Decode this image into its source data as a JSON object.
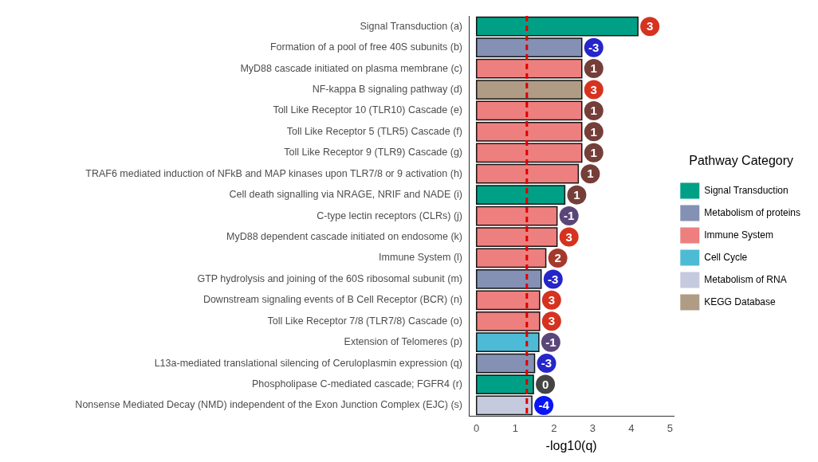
{
  "chart_data": {
    "type": "bar",
    "orientation": "horizontal",
    "stacked": true,
    "xlabel": "-log10(q)",
    "legend_title": "Pathway Category",
    "legend": "right",
    "grid": false,
    "categories": [
      "Signal Transduction (a)",
      "Formation of a pool of free 40S subunits (b)",
      "MyD88 cascade initiated on plasma membrane (c)",
      "NF-kappa B signaling pathway (d)",
      "Toll Like Receptor 10 (TLR10) Cascade (e)",
      "Toll Like Receptor 5 (TLR5) Cascade (f)",
      "Toll Like Receptor 9 (TLR9) Cascade (g)",
      "TRAF6 mediated induction of NFkB and MAP kinases upon TLR7/8 or 9 activation (h)",
      "Cell death signalling via NRAGE, NRIF and NADE (i)",
      "C-type lectin receptors (CLRs) (j)",
      "MyD88 dependent cascade initiated on endosome (k)",
      "Immune System (l)",
      "GTP hydrolysis and joining of the 60S ribosomal subunit (m)",
      "Downstream signaling events of B Cell Receptor (BCR) (n)",
      "Toll Like Receptor 7/8 (TLR7/8) Cascade (o)",
      "Extension of Telomeres (p)",
      "L13a-mediated translational silencing of Ceruloplasmin expression (q)",
      "Phospholipase C-mediated cascade; FGFR4 (r)",
      "Nonsense Mediated Decay (NMD) independent of the Exon Junction Complex (EJC) (s)"
    ],
    "series": [
      {
        "name": "Signal Transduction",
        "color": "#00a087",
        "values": [
          4.17,
          null,
          null,
          null,
          null,
          null,
          null,
          null,
          2.28,
          null,
          null,
          null,
          null,
          null,
          null,
          null,
          null,
          1.47,
          null
        ]
      },
      {
        "name": "Metabolism of proteins",
        "color": "#8491b4",
        "values": [
          null,
          2.72,
          null,
          null,
          null,
          null,
          null,
          null,
          null,
          null,
          null,
          null,
          1.67,
          null,
          null,
          null,
          1.5,
          null,
          null
        ]
      },
      {
        "name": "Immune System",
        "color": "#ee7f7f",
        "values": [
          null,
          null,
          2.72,
          null,
          2.72,
          2.72,
          2.72,
          2.63,
          null,
          2.08,
          2.08,
          1.79,
          null,
          1.63,
          1.63,
          null,
          null,
          null,
          null
        ]
      },
      {
        "name": "Cell Cycle",
        "color": "#4dbbd5",
        "values": [
          null,
          null,
          null,
          null,
          null,
          null,
          null,
          null,
          null,
          null,
          null,
          null,
          null,
          null,
          null,
          1.61,
          null,
          null,
          null
        ]
      },
      {
        "name": "Metabolism of RNA",
        "color": "#c5cade",
        "values": [
          null,
          null,
          null,
          null,
          null,
          null,
          null,
          null,
          null,
          null,
          null,
          null,
          null,
          null,
          null,
          null,
          null,
          null,
          1.43
        ]
      },
      {
        "name": "KEGG Database",
        "color": "#b09c85",
        "values": [
          null,
          null,
          null,
          2.72,
          null,
          null,
          null,
          null,
          null,
          null,
          null,
          null,
          null,
          null,
          null,
          null,
          null,
          null,
          null
        ]
      }
    ],
    "xlim": [
      -0.2,
      5.1
    ],
    "xticks": [
      0,
      1,
      2,
      3,
      4,
      5
    ],
    "ref_lines": [
      {
        "axis": "x",
        "value": 1.3,
        "color": "#e00000",
        "line_style": "dashed"
      }
    ],
    "annotations": [
      {
        "text": "3",
        "x": 4.17,
        "y": "Signal Transduction (a)"
      },
      {
        "text": "-3",
        "x": 2.72,
        "y": "Formation of a pool of free 40S subunits (b)"
      },
      {
        "text": "1",
        "x": 2.72,
        "y": "MyD88 cascade initiated on plasma membrane (c)"
      },
      {
        "text": "3",
        "x": 2.72,
        "y": "NF-kappa B signaling pathway (d)"
      },
      {
        "text": "1",
        "x": 2.72,
        "y": "Toll Like Receptor 10 (TLR10) Cascade (e)"
      },
      {
        "text": "1",
        "x": 2.72,
        "y": "Toll Like Receptor 5 (TLR5) Cascade (f)"
      },
      {
        "text": "1",
        "x": 2.72,
        "y": "Toll Like Receptor 9 (TLR9) Cascade (g)"
      },
      {
        "text": "1",
        "x": 2.63,
        "y": "TRAF6 mediated induction of NFkB and MAP kinases upon TLR7/8 or 9 activation (h)"
      },
      {
        "text": "1",
        "x": 2.28,
        "y": "Cell death signalling via NRAGE, NRIF and NADE (i)"
      },
      {
        "text": "-1",
        "x": 2.08,
        "y": "C-type lectin receptors (CLRs) (j)"
      },
      {
        "text": "3",
        "x": 2.08,
        "y": "MyD88 dependent cascade initiated on endosome (k)"
      },
      {
        "text": "2",
        "x": 1.79,
        "y": "Immune System (l)"
      },
      {
        "text": "-3",
        "x": 1.67,
        "y": "GTP hydrolysis and joining of the 60S ribosomal subunit (m)"
      },
      {
        "text": "3",
        "x": 1.63,
        "y": "Downstream signaling events of B Cell Receptor (BCR) (n)"
      },
      {
        "text": "3",
        "x": 1.63,
        "y": "Toll Like Receptor 7/8 (TLR7/8) Cascade (o)"
      },
      {
        "text": "-1",
        "x": 1.61,
        "y": "Extension of Telomeres (p)"
      },
      {
        "text": "-3",
        "x": 1.5,
        "y": "L13a-mediated translational silencing of Ceruloplasmin expression (q)"
      },
      {
        "text": "0",
        "x": 1.47,
        "y": "Phospholipase C-mediated cascade; FGFR4 (r)"
      },
      {
        "text": "-4",
        "x": 1.43,
        "y": "Nonsense Mediated Decay (NMD) independent of the Exon Junction Complex (EJC) (s)"
      }
    ]
  }
}
